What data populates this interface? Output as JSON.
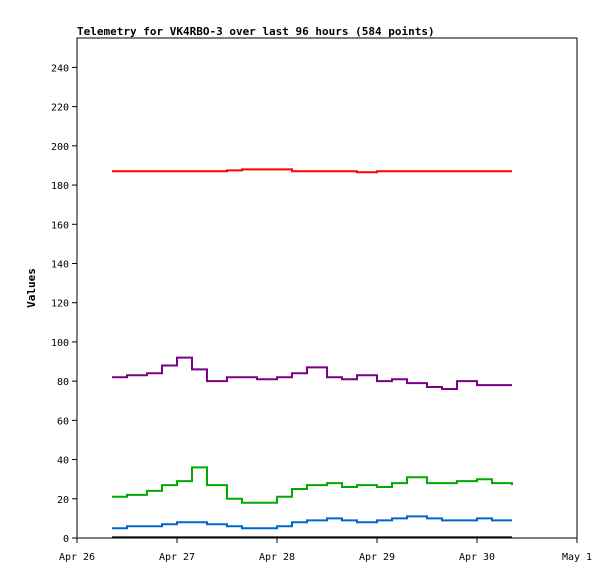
{
  "chart_data": {
    "type": "line",
    "title": "Telemetry for VK4RBO-3 over last 96 hours (584 points)",
    "xlabel": "",
    "ylabel": "Values",
    "xlim": [
      "Apr 26",
      "May 1"
    ],
    "ylim": [
      0,
      255
    ],
    "xticks": [
      "Apr 26",
      "Apr 27",
      "Apr 28",
      "Apr 29",
      "Apr 30",
      "May 1"
    ],
    "yticks": [
      0,
      20,
      40,
      60,
      80,
      100,
      120,
      140,
      160,
      180,
      200,
      220,
      240
    ],
    "grid": false,
    "legend": "none",
    "x_unit": "days",
    "x": [
      0.35,
      0.5,
      0.7,
      0.85,
      1.0,
      1.15,
      1.3,
      1.5,
      1.65,
      1.8,
      2.0,
      2.15,
      2.3,
      2.5,
      2.65,
      2.8,
      3.0,
      3.15,
      3.3,
      3.5,
      3.65,
      3.8,
      4.0,
      4.15,
      4.35
    ],
    "series": [
      {
        "color": "#ff0000",
        "values": [
          187,
          187,
          187,
          187,
          187,
          187,
          187,
          187.5,
          188,
          188,
          188,
          187,
          187,
          187,
          187,
          186.5,
          187,
          187,
          187,
          187,
          187,
          187,
          187,
          187,
          187
        ]
      },
      {
        "color": "#7b0085",
        "values": [
          82,
          83,
          84,
          88,
          92,
          86,
          80,
          82,
          82,
          81,
          82,
          84,
          87,
          82,
          81,
          83,
          80,
          81,
          79,
          77,
          76,
          80,
          78,
          78,
          78
        ]
      },
      {
        "color": "#00aa00",
        "values": [
          21,
          22,
          24,
          27,
          29,
          36,
          27,
          20,
          18,
          18,
          21,
          25,
          27,
          28,
          26,
          27,
          26,
          28,
          31,
          28,
          28,
          29,
          30,
          28,
          27
        ]
      },
      {
        "color": "#0066cc",
        "values": [
          5,
          6,
          6,
          7,
          8,
          8,
          7,
          6,
          5,
          5,
          6,
          8,
          9,
          10,
          9,
          8,
          9,
          10,
          11,
          10,
          9,
          9,
          10,
          9,
          9
        ]
      },
      {
        "color": "#000000",
        "values": [
          0.3,
          0.3,
          0.3,
          0.3,
          0.3,
          0.3,
          0.3,
          0.3,
          0.3,
          0.3,
          0.3,
          0.3,
          0.3,
          0.3,
          0.3,
          0.3,
          0.3,
          0.3,
          0.3,
          0.3,
          0.3,
          0.3,
          0.3,
          0.3,
          0.3
        ]
      }
    ]
  }
}
